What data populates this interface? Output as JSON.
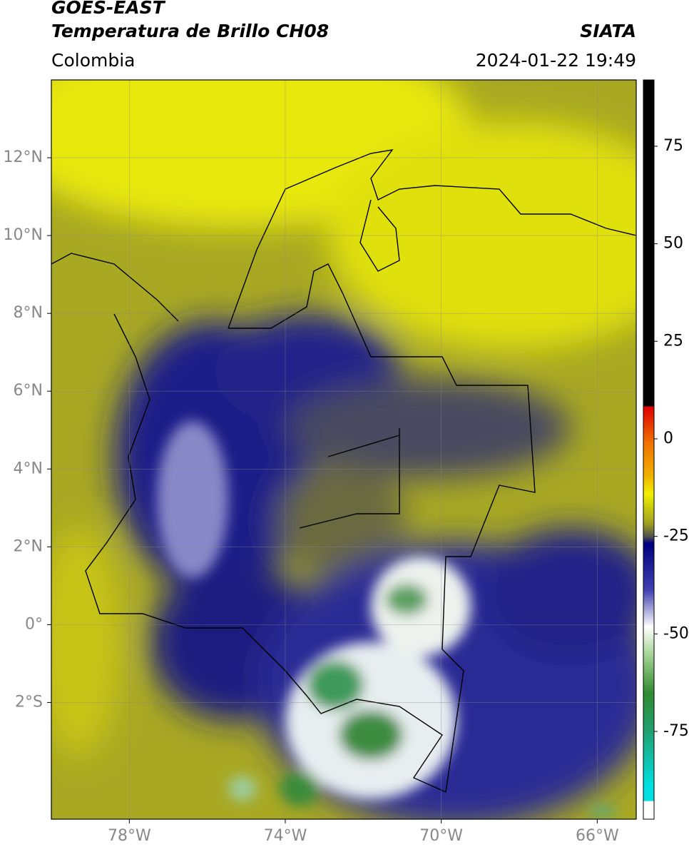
{
  "header": {
    "title": "GOES-EAST",
    "subtitle": "Temperatura de Brillo CH08",
    "source": "SIATA",
    "region": "Colombia",
    "datetime": "2024-01-22 19:49"
  },
  "map": {
    "xlim": [
      -80,
      -65
    ],
    "ylim": [
      -5,
      14
    ],
    "grid": true,
    "xticks": [
      {
        "value": -78,
        "label": "78°W"
      },
      {
        "value": -74,
        "label": "74°W"
      },
      {
        "value": -70,
        "label": "70°W"
      },
      {
        "value": -66,
        "label": "66°W"
      }
    ],
    "yticks": [
      {
        "value": 12,
        "label": "12°N"
      },
      {
        "value": 10,
        "label": "10°N"
      },
      {
        "value": 8,
        "label": "8°N"
      },
      {
        "value": 6,
        "label": "6°N"
      },
      {
        "value": 4,
        "label": "4°N"
      },
      {
        "value": 2,
        "label": "2°N"
      },
      {
        "value": 0,
        "label": "0°"
      },
      {
        "value": -2,
        "label": "2°S"
      }
    ]
  },
  "colorbar": {
    "lim": [
      -97.5,
      92
    ],
    "ticks": [
      75,
      50,
      25,
      0,
      -25,
      -50,
      -75
    ]
  }
}
